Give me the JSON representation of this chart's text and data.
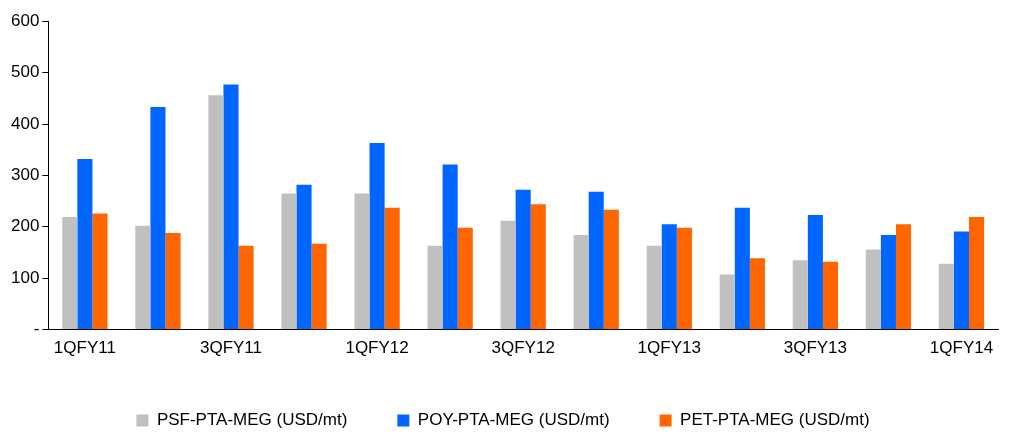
{
  "chart_data": {
    "type": "bar",
    "categories": [
      "1QFY11",
      null,
      "3QFY11",
      null,
      "1QFY12",
      null,
      "3QFY12",
      null,
      "1QFY13",
      null,
      "3QFY13",
      null,
      "1QFY14"
    ],
    "series": [
      {
        "name": "PSF-PTA-MEG (USD/mt)",
        "color": "#c0c0c0",
        "values": [
          219,
          202,
          456,
          265,
          265,
          163,
          212,
          184,
          163,
          107,
          135,
          156,
          128
        ]
      },
      {
        "name": "POY-PTA-MEG (USD/mt)",
        "color": "#0066ff",
        "values": [
          332,
          433,
          477,
          282,
          363,
          321,
          272,
          268,
          205,
          237,
          223,
          184,
          191
        ]
      },
      {
        "name": "PET-PTA-MEG (USD/mt)",
        "color": "#ff6600",
        "values": [
          226,
          188,
          163,
          167,
          237,
          198,
          244,
          233,
          198,
          139,
          132,
          205,
          219
        ]
      }
    ],
    "ylim": [
      0,
      600
    ],
    "yticks": [
      {
        "value": 0,
        "label": "-"
      },
      100,
      200,
      300,
      400,
      500,
      600
    ],
    "grid": false,
    "legend": "bottom"
  }
}
